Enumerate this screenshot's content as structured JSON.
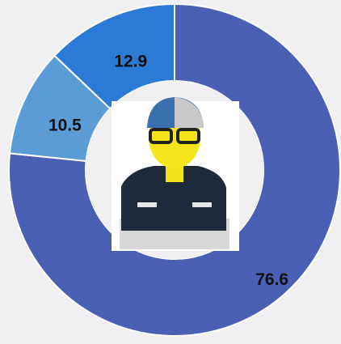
{
  "chart_data": {
    "type": "donut",
    "values": [
      76.6,
      10.5,
      12.9
    ],
    "colors": [
      "#4a60b4",
      "#5b9bd6",
      "#2b7bd6"
    ]
  }
}
